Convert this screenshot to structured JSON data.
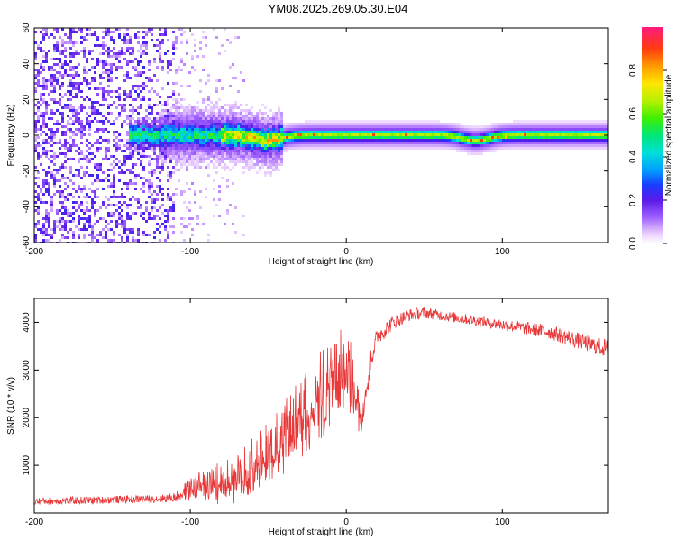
{
  "title": "YM08.2025.269.05.30.E04",
  "chart_data": [
    {
      "type": "heatmap",
      "xlabel": "Height of straight line (km)",
      "ylabel": "Frequency (Hz)",
      "xlim": [
        -200,
        168
      ],
      "ylim": [
        -60,
        60
      ],
      "xticks": [
        -200,
        -100,
        0,
        100
      ],
      "yticks": [
        -60,
        -40,
        -20,
        0,
        20,
        40,
        60
      ],
      "colorbar": {
        "label": "Normalized spectral amplitude",
        "range": [
          0,
          1
        ],
        "ticks": [
          "0.0",
          "0.2",
          "0.4",
          "0.6",
          "0.8"
        ]
      },
      "ridge": {
        "frequency_hz": 0,
        "ridge_onset_km": -140,
        "noise_band_until_km": -110,
        "dips": [
          {
            "x_km": -50,
            "frequency_hz": -3
          },
          {
            "x_km": 83,
            "frequency_hz": -3
          }
        ]
      }
    },
    {
      "type": "line",
      "xlabel": "Height of straight line (km)",
      "ylabel": "SNR (10 * v/v)",
      "xlim": [
        -200,
        168
      ],
      "ylim": [
        0,
        4500
      ],
      "xticks": [
        -200,
        -100,
        0,
        100
      ],
      "yticks": [
        1000,
        2000,
        3000,
        4000
      ],
      "color": "#e8393a",
      "series": [
        {
          "x": [
            -200,
            -180,
            -160,
            -140,
            -120,
            -110,
            -100,
            -90,
            -80,
            -70,
            -60,
            -50,
            -40,
            -30,
            -20,
            -10,
            0,
            5,
            10,
            15,
            20,
            30,
            40,
            50,
            60,
            70,
            80,
            90,
            100,
            110,
            120,
            130,
            140,
            150,
            160,
            168
          ],
          "y": [
            250,
            260,
            270,
            290,
            300,
            330,
            500,
            650,
            700,
            800,
            1100,
            1400,
            1700,
            2100,
            2500,
            2800,
            3300,
            2700,
            2200,
            3200,
            3700,
            4000,
            4150,
            4200,
            4150,
            4100,
            4050,
            4000,
            3950,
            3900,
            3850,
            3800,
            3700,
            3600,
            3500,
            3450
          ],
          "noise": [
            80,
            80,
            80,
            80,
            80,
            100,
            250,
            320,
            380,
            450,
            500,
            550,
            650,
            700,
            800,
            800,
            700,
            600,
            500,
            300,
            200,
            150,
            130,
            120,
            110,
            110,
            110,
            110,
            120,
            130,
            140,
            150,
            160,
            170,
            180,
            200
          ]
        }
      ]
    }
  ]
}
